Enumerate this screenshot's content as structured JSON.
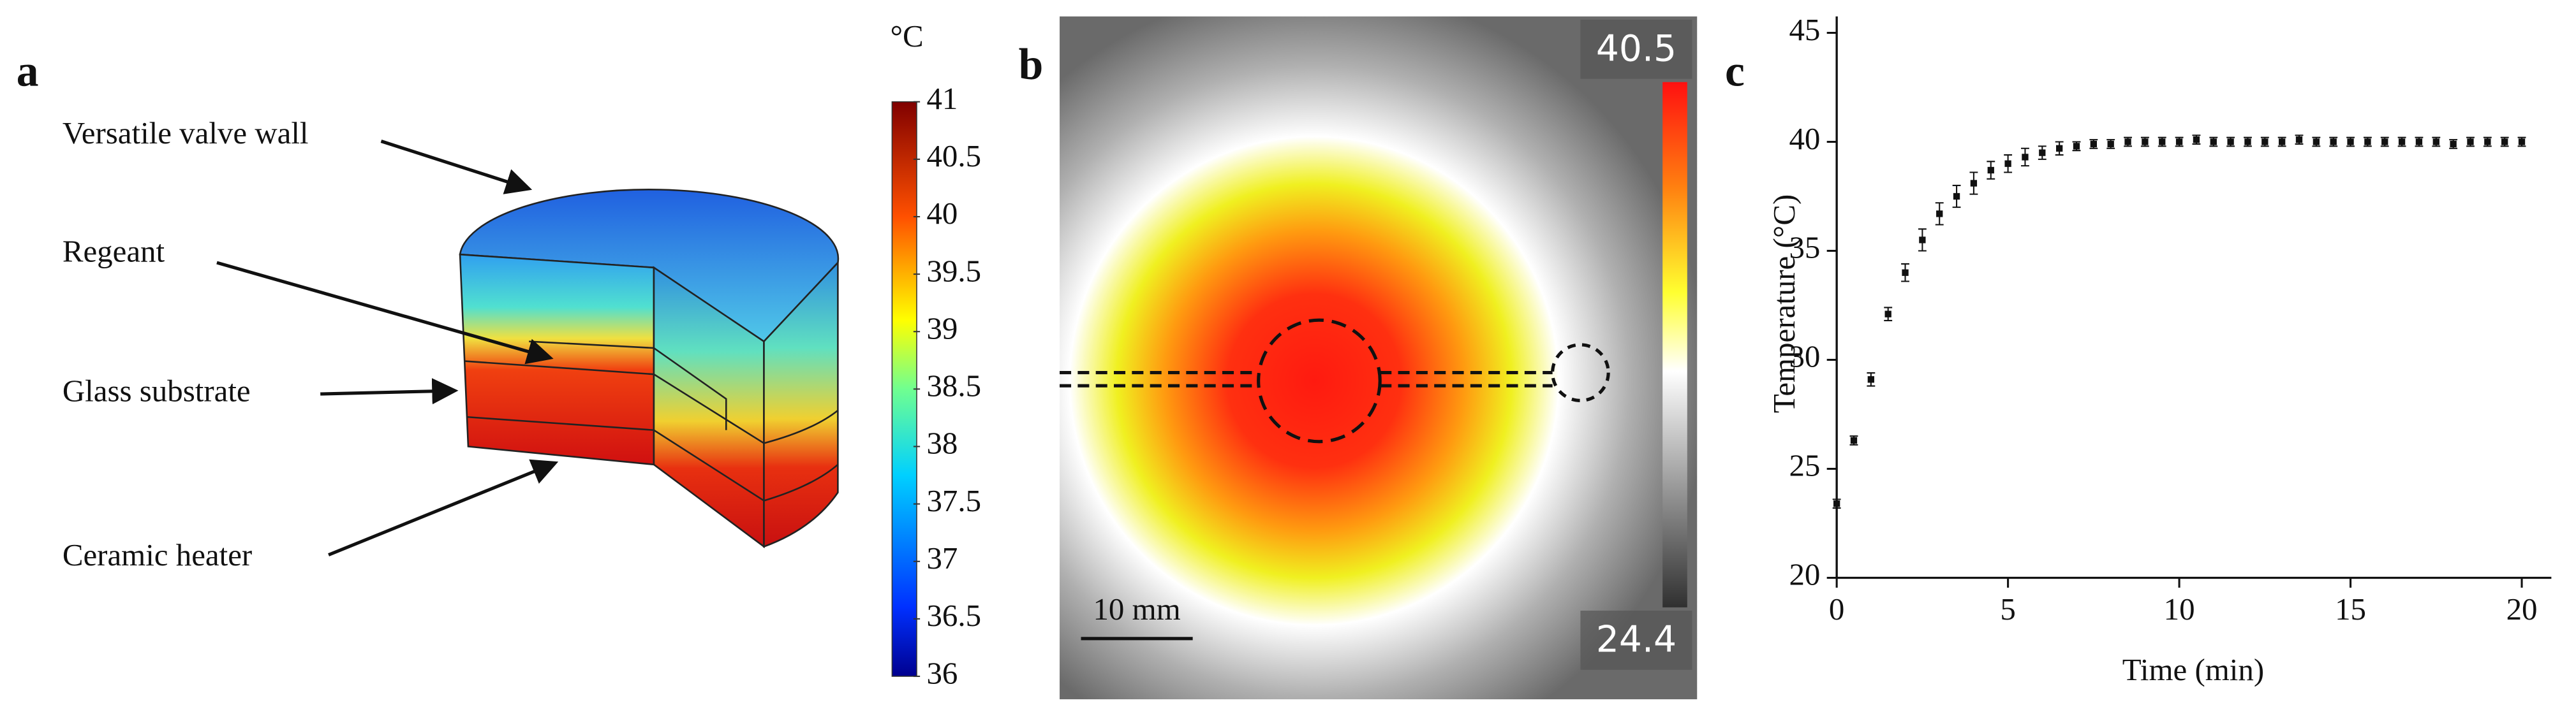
{
  "panel_a": {
    "letter": "a",
    "labels": [
      "Versatile valve wall",
      "Regeant",
      "Glass substrate",
      "Ceramic heater"
    ],
    "colorbar": {
      "unit": "°C",
      "lim": [
        36,
        41
      ],
      "ticks": [
        36,
        36.5,
        37,
        37.5,
        38,
        38.5,
        39,
        39.5,
        40,
        40.5,
        41
      ]
    }
  },
  "panel_b": {
    "letter": "b",
    "colorbar": {
      "max": 40.5,
      "min": 24.4
    },
    "scale_bar": "10 mm"
  },
  "panel_c": {
    "letter": "c"
  },
  "chart_data": {
    "type": "scatter",
    "x_label": "Time (min)",
    "y_label": "Temperature (°C)",
    "x": [
      0,
      0.5,
      1,
      1.5,
      2,
      2.5,
      3,
      3.5,
      4,
      4.5,
      5,
      5.5,
      6,
      6.5,
      7,
      7.5,
      8,
      8.5,
      9,
      9.5,
      10,
      10.5,
      11,
      11.5,
      12,
      12.5,
      13,
      13.5,
      14,
      14.5,
      15,
      15.5,
      16,
      16.5,
      17,
      17.5,
      18,
      18.5,
      19,
      19.5,
      20
    ],
    "values": [
      23.4,
      26.3,
      29.1,
      32.1,
      34.0,
      35.5,
      36.7,
      37.5,
      38.1,
      38.7,
      39.0,
      39.3,
      39.5,
      39.7,
      39.8,
      39.9,
      39.9,
      40.0,
      40.0,
      40.0,
      40.0,
      40.1,
      40.0,
      40.0,
      40.0,
      40.0,
      40.0,
      40.1,
      40.0,
      40.0,
      40.0,
      40.0,
      40.0,
      40.0,
      40.0,
      40.0,
      39.9,
      40.0,
      40.0,
      40.0,
      40.0
    ],
    "errors": [
      0.2,
      0.2,
      0.3,
      0.3,
      0.4,
      0.5,
      0.5,
      0.5,
      0.5,
      0.4,
      0.4,
      0.4,
      0.3,
      0.3,
      0.2,
      0.2,
      0.2,
      0.2,
      0.2,
      0.2,
      0.2,
      0.2,
      0.2,
      0.2,
      0.2,
      0.2,
      0.2,
      0.2,
      0.2,
      0.2,
      0.2,
      0.2,
      0.2,
      0.2,
      0.2,
      0.2,
      0.2,
      0.2,
      0.2,
      0.2,
      0.2
    ],
    "color": "#111111",
    "xlim": [
      0,
      20
    ],
    "xticks": [
      0,
      5,
      10,
      15,
      20
    ],
    "ylim": [
      20,
      45
    ],
    "yticks": [
      20,
      25,
      30,
      35,
      40,
      45
    ]
  }
}
